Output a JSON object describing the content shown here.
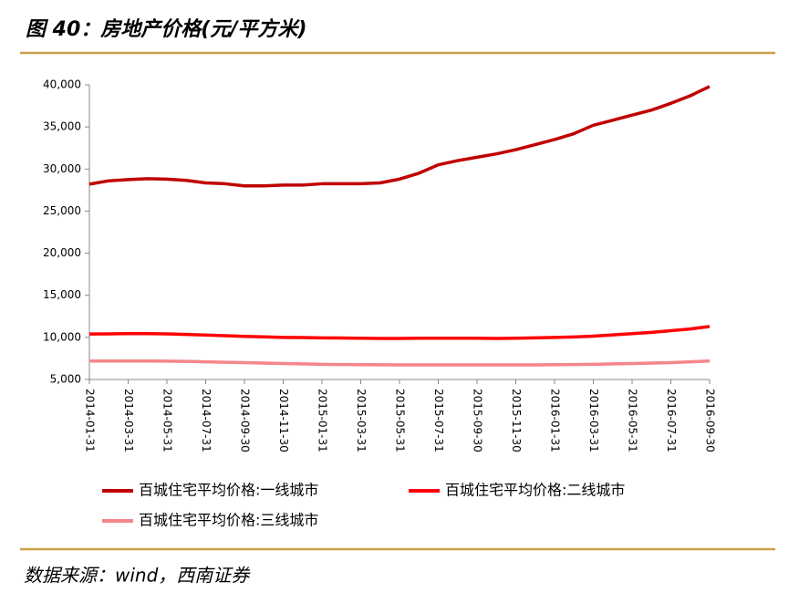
{
  "title": "图 40：房地产价格(元/平方米)",
  "source": "数据来源：wind，西南证券",
  "chart_data": {
    "type": "line",
    "categories": [
      "2014-01-31",
      null,
      "2014-03-31",
      null,
      "2014-05-31",
      null,
      "2014-07-31",
      null,
      "2014-09-30",
      null,
      "2014-11-30",
      null,
      "2015-01-31",
      null,
      "2015-03-31",
      null,
      "2015-05-31",
      null,
      "2015-07-31",
      null,
      "2015-09-30",
      null,
      "2015-11-30",
      null,
      "2016-01-31",
      null,
      "2016-03-31",
      null,
      "2016-05-31",
      null,
      "2016-07-31",
      null,
      "2016-09-30"
    ],
    "series": [
      {
        "name": "百城住宅平均价格:一线城市",
        "color": "#c00000",
        "values": [
          28200,
          28600,
          28750,
          28850,
          28800,
          28650,
          28350,
          28250,
          28000,
          28000,
          28100,
          28100,
          28250,
          28250,
          28250,
          28350,
          28800,
          29500,
          30500,
          31000,
          31400,
          31800,
          32300,
          32900,
          33500,
          34200,
          35200,
          35800,
          36400,
          37000,
          37800,
          38700,
          39800
        ]
      },
      {
        "name": "百城住宅平均价格:二线城市",
        "color": "#ff0000",
        "values": [
          10400,
          10420,
          10450,
          10450,
          10420,
          10350,
          10280,
          10200,
          10120,
          10060,
          10000,
          9980,
          9950,
          9930,
          9900,
          9880,
          9880,
          9900,
          9900,
          9900,
          9900,
          9880,
          9900,
          9950,
          10000,
          10050,
          10150,
          10300,
          10450,
          10600,
          10800,
          11000,
          11300
        ]
      },
      {
        "name": "百城住宅平均价格:三线城市",
        "color": "#f4868a",
        "values": [
          7200,
          7200,
          7200,
          7200,
          7180,
          7150,
          7100,
          7050,
          7000,
          6950,
          6900,
          6850,
          6800,
          6780,
          6760,
          6750,
          6740,
          6740,
          6740,
          6740,
          6740,
          6740,
          6740,
          6740,
          6760,
          6780,
          6800,
          6850,
          6900,
          6950,
          7000,
          7100,
          7200
        ]
      }
    ],
    "ylim": [
      5000,
      40000
    ],
    "yticks": [
      {
        "value": 5000,
        "label": "5,000"
      },
      {
        "value": 10000,
        "label": "10,000"
      },
      {
        "value": 15000,
        "label": "15,000"
      },
      {
        "value": 20000,
        "label": "20,000"
      },
      {
        "value": 25000,
        "label": "25,000"
      },
      {
        "value": 30000,
        "label": "30,000"
      },
      {
        "value": 35000,
        "label": "35,000"
      },
      {
        "value": 40000,
        "label": "40,000"
      }
    ],
    "grid": false
  }
}
